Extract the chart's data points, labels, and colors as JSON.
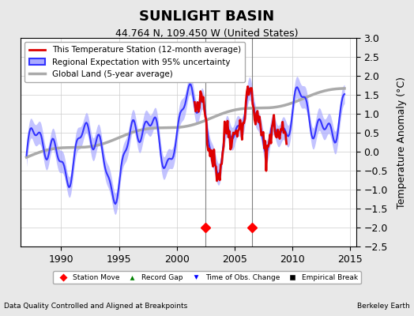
{
  "title": "SUNLIGHT BASIN",
  "subtitle": "44.764 N, 109.450 W (United States)",
  "ylabel": "Temperature Anomaly (°C)",
  "ylim": [
    -2.5,
    3.0
  ],
  "xlim": [
    1986.5,
    2015.5
  ],
  "xticks": [
    1990,
    1995,
    2000,
    2005,
    2010,
    2015
  ],
  "yticks": [
    -2.5,
    -2,
    -1.5,
    -1,
    -0.5,
    0,
    0.5,
    1,
    1.5,
    2,
    2.5,
    3
  ],
  "footer_left": "Data Quality Controlled and Aligned at Breakpoints",
  "footer_right": "Berkeley Earth",
  "vertical_lines": [
    2002.5,
    2006.5
  ],
  "station_move_markers": [
    2002.5,
    2006.5
  ],
  "background_color": "#e8e8e8",
  "plot_bg_color": "#ffffff",
  "regional_color": "#3333ff",
  "regional_fill_color": "#aaaaff",
  "station_color": "#dd0000",
  "global_color": "#aaaaaa",
  "legend_labels": [
    "This Temperature Station (12-month average)",
    "Regional Expectation with 95% uncertainty",
    "Global Land (5-year average)"
  ]
}
